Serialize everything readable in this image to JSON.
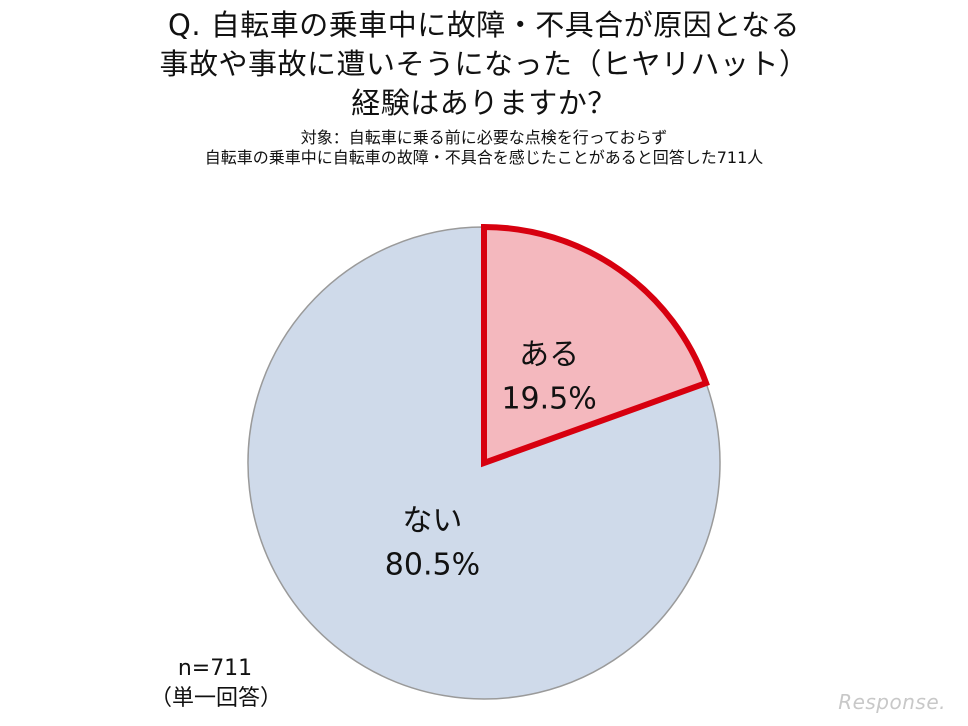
{
  "chart_data": {
    "type": "pie",
    "title_lines": [
      "Q. 自転車の乗車中に故障・不具合が原因となる",
      "事故や事故に遭いそうになった（ヒヤリハット）",
      "経験はありますか？"
    ],
    "subtitle_lines": [
      "対象：自転車に乗る前に必要な点検を行っておらず",
      "自転車の乗車中に自転車の故障・不具合を感じたことがあると回答した711人"
    ],
    "slices": [
      {
        "label": "ある",
        "value": 19.5,
        "value_text": "19.5%",
        "color": "#f4b8be",
        "border_color": "#d7000f",
        "highlighted": true
      },
      {
        "label": "ない",
        "value": 80.5,
        "value_text": "80.5%",
        "color": "#cfdaea",
        "border_color": "#9a9a9a",
        "highlighted": false
      }
    ],
    "start_angle": "12 o'clock",
    "direction": "clockwise",
    "sample_size_text": "n=711",
    "answer_type_text": "（単一回答）"
  },
  "watermark": "Response."
}
